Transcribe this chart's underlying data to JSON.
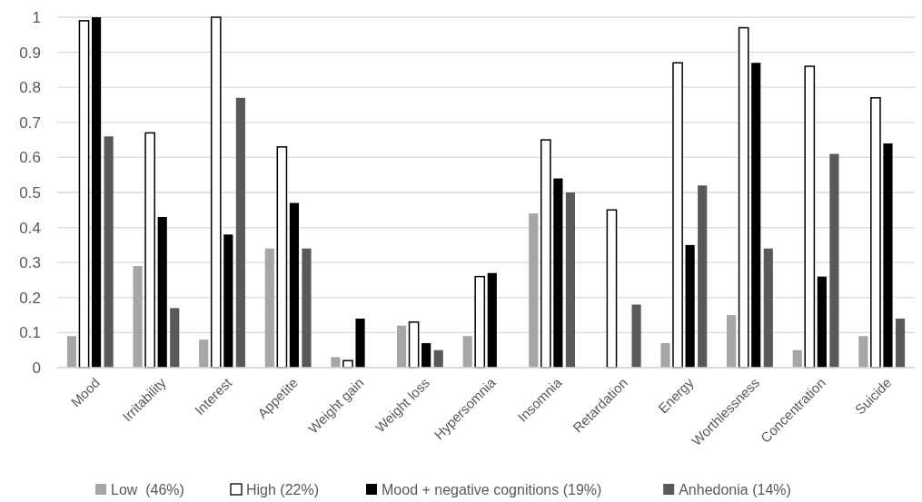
{
  "chart_data": {
    "type": "bar",
    "categories": [
      "Mood",
      "Irritability",
      "Interest",
      "Appetite",
      "Weight gain",
      "Weight loss",
      "Hypersomnia",
      "Insomnia",
      "Retardation",
      "Energy",
      "Worthlessness",
      "Concentration",
      "Suicide"
    ],
    "series": [
      {
        "name": "Low  (46%)",
        "color": "#a6a6a6",
        "values": [
          0.09,
          0.29,
          0.08,
          0.34,
          0.03,
          0.12,
          0.09,
          0.44,
          0,
          0.07,
          0.15,
          0.05,
          0.09
        ]
      },
      {
        "name": "High (22%)",
        "color": "#ffffff",
        "values": [
          0.99,
          0.67,
          1,
          0.63,
          0.02,
          0.13,
          0.26,
          0.65,
          0.45,
          0.87,
          0.97,
          0.86,
          0.77
        ]
      },
      {
        "name": "Mood + negative cognitions (19%)",
        "color": "#000000",
        "values": [
          1,
          0.43,
          0.38,
          0.47,
          0.14,
          0.07,
          0.27,
          0.54,
          0,
          0.35,
          0.87,
          0.26,
          0.64
        ]
      },
      {
        "name": "Anhedonia (14%)",
        "color": "#595959",
        "values": [
          0.66,
          0.17,
          0.77,
          0.34,
          0,
          0.05,
          0,
          0.5,
          0.18,
          0.52,
          0.34,
          0.61,
          0.14
        ]
      }
    ],
    "ylim": [
      0,
      1
    ],
    "yticks": [
      0,
      0.1,
      0.2,
      0.3,
      0.4,
      0.5,
      0.6,
      0.7,
      0.8,
      0.9,
      1
    ],
    "grid": "y",
    "legend": "bottom"
  }
}
